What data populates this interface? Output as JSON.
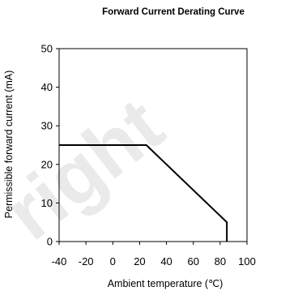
{
  "chart_data": {
    "type": "line",
    "title": "Forward Current Derating  Curve",
    "xlabel": "Ambient temperature (℃)",
    "ylabel": "Permissible forward current (mA)",
    "xlim": [
      -40,
      100
    ],
    "ylim": [
      0,
      50
    ],
    "x_ticks": [
      "-40",
      "-20",
      "0",
      "20",
      "40",
      "60",
      "80",
      "100"
    ],
    "y_ticks": [
      "0",
      "10",
      "20",
      "30",
      "40",
      "50"
    ],
    "grid": false,
    "series": [
      {
        "x": [
          -40,
          25,
          85,
          85
        ],
        "y": [
          25,
          25,
          5,
          0
        ]
      }
    ],
    "line_color": "#000000"
  },
  "watermark": {
    "text": "right"
  }
}
